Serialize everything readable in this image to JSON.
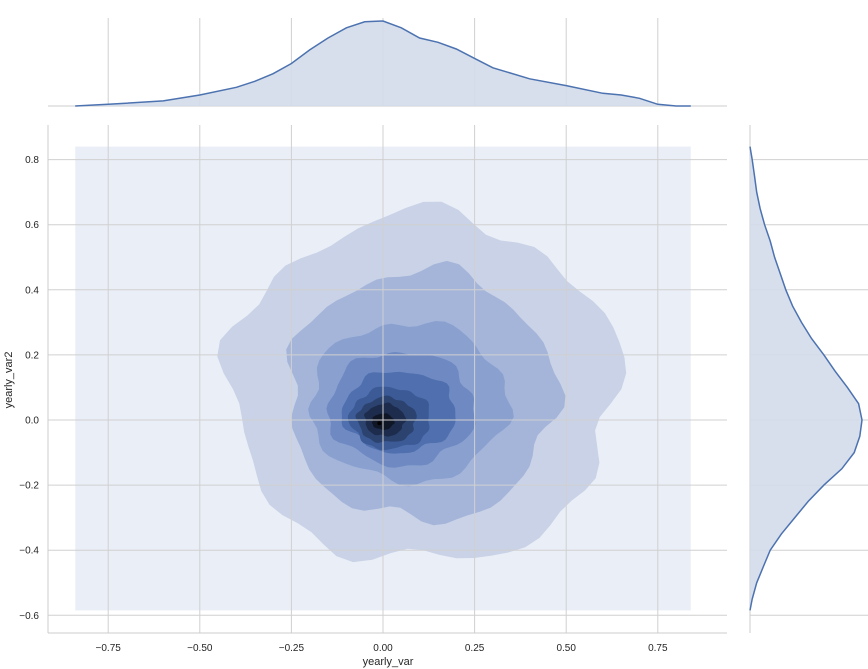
{
  "chart_data": {
    "type": "kde-jointplot",
    "title": "",
    "xlabel": "yearly_var",
    "ylabel": "yearly_var2",
    "xlim": [
      -0.92,
      0.92
    ],
    "ylim": [
      -0.62,
      0.92
    ],
    "x_ticks": [
      -0.75,
      -0.5,
      -0.25,
      0.0,
      0.25,
      0.5,
      0.75
    ],
    "x_tick_labels": [
      "−0.75",
      "−0.50",
      "−0.25",
      "0.00",
      "0.25",
      "0.50",
      "0.75"
    ],
    "y_ticks": [
      -0.6,
      -0.4,
      -0.2,
      0.0,
      0.2,
      0.4,
      0.6,
      0.8
    ],
    "y_tick_labels": [
      "−0.6",
      "−0.4",
      "−0.2",
      "0.0",
      "0.2",
      "0.4",
      "0.6",
      "0.8"
    ],
    "grid": true,
    "colors": {
      "line": "#4c72b0",
      "marginal_fill": "#d3dbea",
      "background_fill": "#eaeef7",
      "grid": "#d0d0d0",
      "levels": [
        "#c9d2e6",
        "#a5b5da",
        "#8aa1cf",
        "#6f89c2",
        "#4f6fae",
        "#3b5a96",
        "#2c4370",
        "#1d2c4c",
        "#0f1626"
      ]
    },
    "joint_kde": {
      "center": [
        -0.01,
        -0.01
      ],
      "background_extent": {
        "x": [
          -0.84,
          0.84
        ],
        "y": [
          -0.585,
          0.84
        ]
      },
      "contours": [
        {
          "level": 1,
          "x_extent": [
            -0.42,
            0.64
          ],
          "y_extent": [
            -0.44,
            0.63
          ]
        },
        {
          "level": 2,
          "x_extent": [
            -0.26,
            0.47
          ],
          "y_extent": [
            -0.31,
            0.46
          ]
        },
        {
          "level": 3,
          "x_extent": [
            -0.2,
            0.34
          ],
          "y_extent": [
            -0.19,
            0.3
          ]
        },
        {
          "level": 4,
          "x_extent": [
            -0.15,
            0.25
          ],
          "y_extent": [
            -0.14,
            0.21
          ]
        },
        {
          "level": 5,
          "x_extent": [
            -0.11,
            0.2
          ],
          "y_extent": [
            -0.1,
            0.15
          ]
        },
        {
          "level": 6,
          "x_extent": [
            -0.09,
            0.13
          ],
          "y_extent": [
            -0.09,
            0.1
          ]
        },
        {
          "level": 7,
          "x_extent": [
            -0.07,
            0.09
          ],
          "y_extent": [
            -0.07,
            0.07
          ]
        },
        {
          "level": 8,
          "x_extent": [
            -0.05,
            0.06
          ],
          "y_extent": [
            -0.05,
            0.05
          ]
        },
        {
          "level": 9,
          "x_extent": [
            -0.03,
            0.03
          ],
          "y_extent": [
            -0.03,
            0.02
          ]
        }
      ]
    },
    "marginal_x": {
      "x": [
        -0.84,
        -0.75,
        -0.6,
        -0.5,
        -0.4,
        -0.35,
        -0.3,
        -0.25,
        -0.2,
        -0.15,
        -0.1,
        -0.05,
        0.0,
        0.05,
        0.1,
        0.15,
        0.2,
        0.25,
        0.3,
        0.4,
        0.5,
        0.6,
        0.65,
        0.7,
        0.75,
        0.8,
        0.84
      ],
      "density": [
        0.0,
        0.02,
        0.06,
        0.13,
        0.22,
        0.29,
        0.38,
        0.5,
        0.66,
        0.8,
        0.92,
        0.99,
        1.0,
        0.92,
        0.8,
        0.75,
        0.67,
        0.56,
        0.45,
        0.32,
        0.24,
        0.15,
        0.13,
        0.09,
        0.02,
        0.0,
        0.0
      ]
    },
    "marginal_y": {
      "y": [
        -0.585,
        -0.55,
        -0.5,
        -0.45,
        -0.4,
        -0.35,
        -0.3,
        -0.25,
        -0.2,
        -0.15,
        -0.1,
        -0.05,
        0.0,
        0.05,
        0.1,
        0.15,
        0.2,
        0.25,
        0.3,
        0.35,
        0.4,
        0.45,
        0.5,
        0.55,
        0.6,
        0.65,
        0.7,
        0.75,
        0.8,
        0.84
      ],
      "density": [
        0.0,
        0.02,
        0.06,
        0.12,
        0.18,
        0.28,
        0.4,
        0.52,
        0.66,
        0.82,
        0.93,
        0.98,
        1.0,
        0.97,
        0.87,
        0.76,
        0.66,
        0.55,
        0.46,
        0.38,
        0.32,
        0.27,
        0.22,
        0.18,
        0.13,
        0.09,
        0.06,
        0.04,
        0.02,
        0.0
      ]
    }
  }
}
